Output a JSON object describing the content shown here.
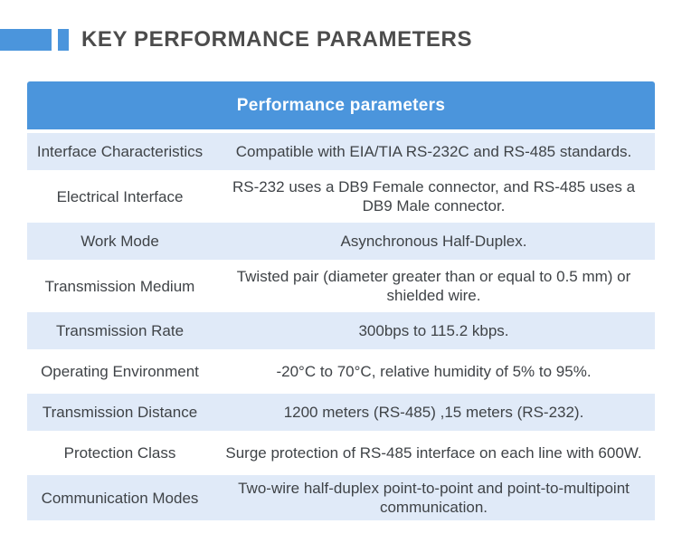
{
  "page_title": "KEY PERFORMANCE PARAMETERS",
  "colors": {
    "accent_blue": "#4b95dc",
    "row_light_blue": "#e0eaf8",
    "title_text": "#4c4c4c",
    "body_text": "#3f4347",
    "header_text": "#ffffff"
  },
  "table": {
    "header": "Performance parameters",
    "rows": [
      {
        "label": "Interface Characteristics",
        "value": "Compatible with EIA/TIA RS-232C and RS-485 standards."
      },
      {
        "label": "Electrical Interface",
        "value": "RS-232 uses a DB9 Female connector, and RS-485 uses a DB9 Male connector."
      },
      {
        "label": "Work Mode",
        "value": "Asynchronous Half-Duplex."
      },
      {
        "label": "Transmission Medium",
        "value": "Twisted pair (diameter greater than or equal to 0.5 mm) or shielded wire."
      },
      {
        "label": "Transmission Rate",
        "value": "300bps to 115.2 kbps."
      },
      {
        "label": "Operating Environment",
        "value": "-20°C to 70°C, relative humidity of 5% to 95%."
      },
      {
        "label": "Transmission Distance",
        "value": "1200 meters (RS-485) ,15 meters (RS-232)."
      },
      {
        "label": "Protection Class",
        "value": "Surge protection of RS-485 interface on each line with 600W."
      },
      {
        "label": "Communication Modes",
        "value": "Two-wire half-duplex point-to-point and point-to-multipoint communication."
      }
    ]
  }
}
